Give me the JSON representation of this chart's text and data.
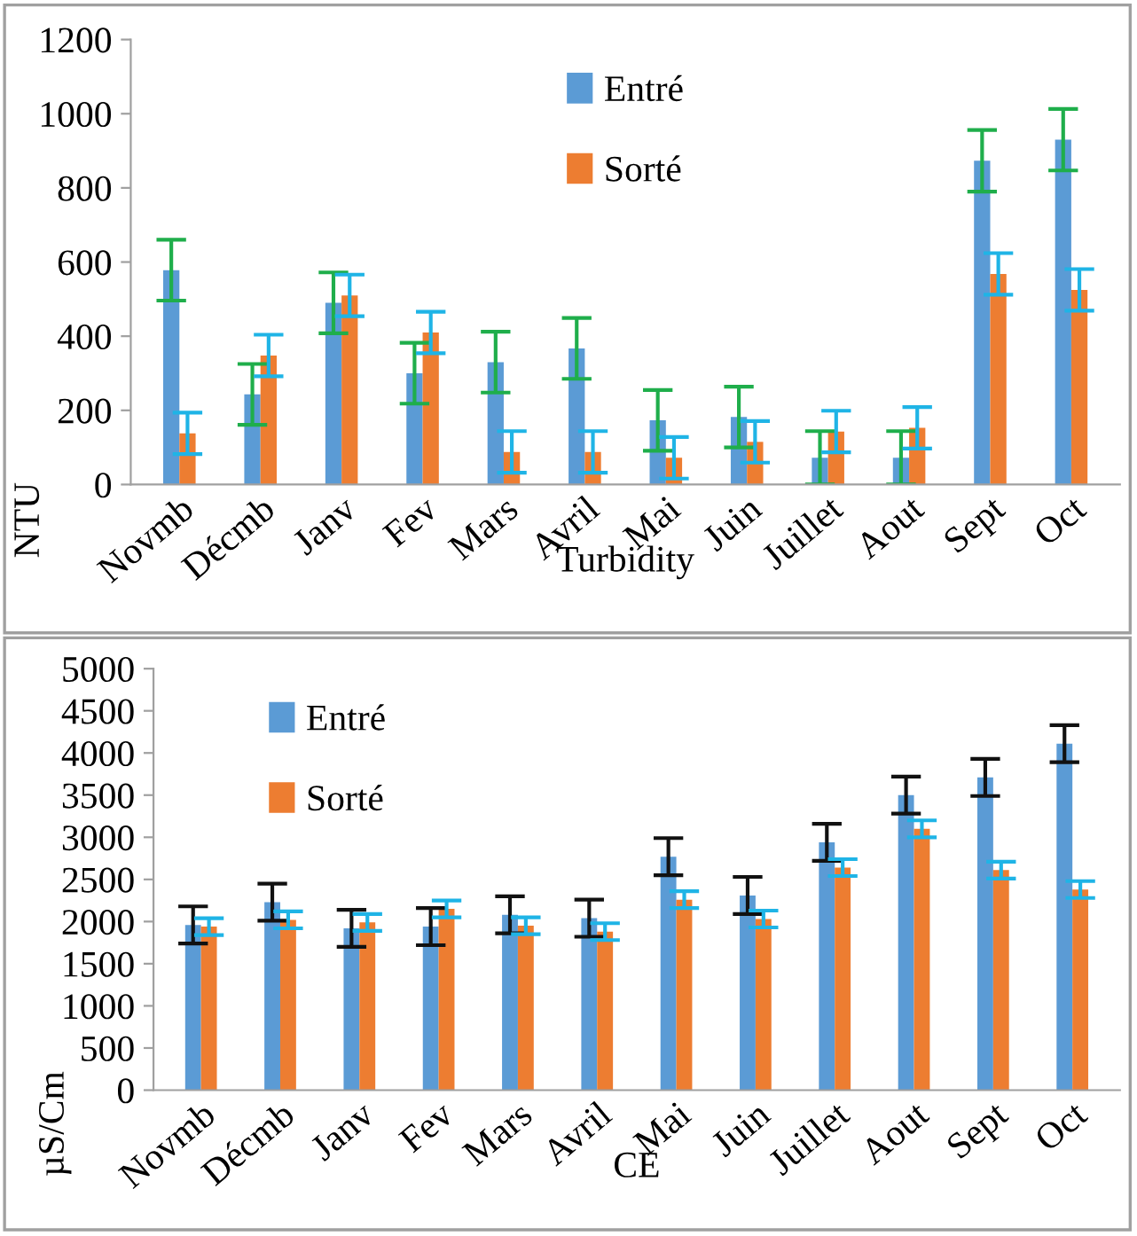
{
  "chart_data": [
    {
      "type": "bar",
      "xlabel": "Turbidity",
      "ylabel": "NTU",
      "categories": [
        "Novmb",
        "Décmb",
        "Janv",
        "Fev",
        "Mars",
        "Avril",
        "Mai",
        "Juin",
        "Juillet",
        "Aout",
        "Sept",
        "Oct"
      ],
      "ylim": [
        0,
        1200
      ],
      "yticks": [
        0,
        200,
        400,
        600,
        800,
        1000,
        1200
      ],
      "grid": false,
      "legend": "top",
      "series": [
        {
          "name": "Entré",
          "color": "#5b9bd5",
          "values": [
            578,
            243,
            490,
            300,
            330,
            367,
            173,
            182,
            72,
            72,
            873,
            930
          ],
          "errors": [
            82,
            82,
            82,
            82,
            82,
            82,
            82,
            82,
            72,
            72,
            83,
            83
          ]
        },
        {
          "name": "Sorté",
          "color": "#ed7d31",
          "values": [
            138,
            348,
            510,
            410,
            88,
            88,
            72,
            115,
            143,
            153,
            568,
            525
          ],
          "errors": [
            56,
            56,
            56,
            56,
            56,
            56,
            56,
            56,
            56,
            56,
            56,
            56
          ]
        }
      ]
    },
    {
      "type": "bar",
      "xlabel": "CE",
      "ylabel": "µS/Cm",
      "categories": [
        "Novmb",
        "Décmb",
        "Janv",
        "Fev",
        "Mars",
        "Avril",
        "Mai",
        "Juin",
        "Juillet",
        "Aout",
        "Sept",
        "Oct"
      ],
      "ylim": [
        0,
        5000
      ],
      "yticks": [
        0,
        500,
        1000,
        1500,
        2000,
        2500,
        3000,
        3500,
        4000,
        4500,
        5000
      ],
      "grid": false,
      "legend": "top left",
      "series": [
        {
          "name": "Entré",
          "color": "#5b9bd5",
          "values": [
            1960,
            2230,
            1920,
            1940,
            2080,
            2040,
            2770,
            2310,
            2940,
            3500,
            3710,
            4110
          ],
          "errors": [
            220,
            220,
            220,
            220,
            220,
            220,
            220,
            220,
            220,
            220,
            220,
            220
          ]
        },
        {
          "name": "Sorté",
          "color": "#ed7d31",
          "values": [
            1940,
            2020,
            1990,
            2150,
            1950,
            1880,
            2260,
            2030,
            2640,
            3100,
            2610,
            2380
          ],
          "errors": [
            100,
            100,
            100,
            100,
            100,
            100,
            100,
            100,
            100,
            100,
            100,
            100
          ]
        }
      ]
    }
  ]
}
